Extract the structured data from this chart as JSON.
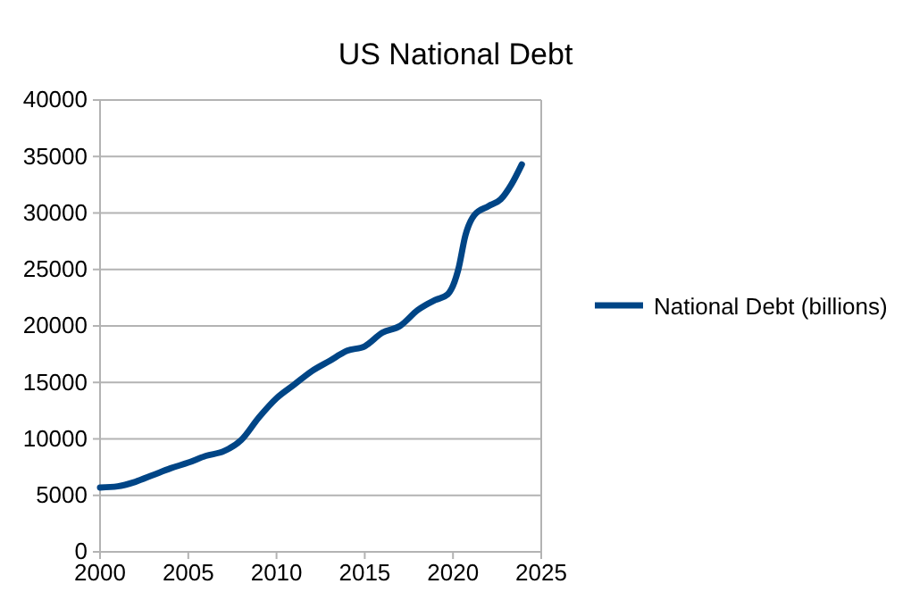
{
  "chart_data": {
    "type": "line",
    "title": "US National Debt",
    "x": [
      2000,
      2001,
      2002,
      2003,
      2004,
      2005,
      2006,
      2007,
      2008,
      2009,
      2010,
      2011,
      2012,
      2013,
      2014,
      2015,
      2016,
      2017,
      2018,
      2019,
      2019.7,
      2020.3,
      2020.7,
      2021.2,
      2022,
      2022.7,
      2023.3,
      2023.9
    ],
    "series": [
      {
        "name": "National Debt (billions)",
        "color": "#004586",
        "values": [
          5700,
          5800,
          6200,
          6800,
          7400,
          7900,
          8500,
          8900,
          9900,
          11900,
          13600,
          14800,
          16000,
          16900,
          17800,
          18200,
          19400,
          20000,
          21400,
          22300,
          22800,
          25000,
          28000,
          29800,
          30600,
          31200,
          32500,
          34300
        ]
      }
    ],
    "xlim": [
      2000,
      2025
    ],
    "xticks": [
      2000,
      2005,
      2010,
      2015,
      2020,
      2025
    ],
    "ylim": [
      0,
      40000
    ],
    "yticks": [
      0,
      5000,
      10000,
      15000,
      20000,
      25000,
      30000,
      35000,
      40000
    ],
    "grid": "y",
    "legend": "right",
    "marker": "none",
    "line_style": "solid"
  }
}
